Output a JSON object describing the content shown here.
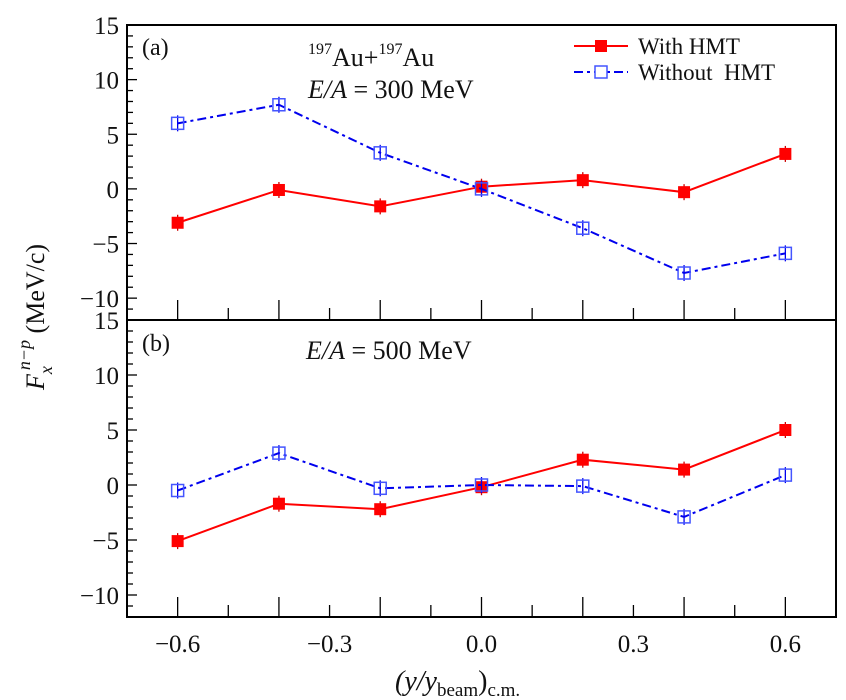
{
  "chart_data": [
    {
      "type": "line",
      "panel_label": "(a)",
      "annotation_line1": {
        "sup1": "197",
        "t1": "Au+",
        "sup2": "197",
        "t2": "Au"
      },
      "annotation_line2": {
        "italic": "E/A",
        "rest": " = 300 MeV"
      },
      "x": [
        -0.6,
        -0.4,
        -0.2,
        0.0,
        0.2,
        0.4,
        0.6
      ],
      "xlim": [
        -0.7,
        0.7
      ],
      "ylim": [
        -12,
        15
      ],
      "yticks": [
        -10,
        -5,
        0,
        5,
        10,
        15
      ],
      "series": [
        {
          "name": "With HMT",
          "color": "#ff0000",
          "marker": "filled-square",
          "linestyle": "solid",
          "values": [
            -3.1,
            -0.1,
            -1.6,
            0.2,
            0.8,
            -0.3,
            3.2
          ]
        },
        {
          "name": "Without  HMT",
          "color": "#0000ee",
          "marker": "open-square",
          "linestyle": "dash-dot",
          "values": [
            6.0,
            7.7,
            3.3,
            0.0,
            -3.6,
            -7.7,
            -5.9
          ]
        }
      ],
      "legend": "top-right"
    },
    {
      "type": "line",
      "panel_label": "(b)",
      "annotation_line2": {
        "italic": "E/A",
        "rest": " = 500 MeV"
      },
      "x": [
        -0.6,
        -0.4,
        -0.2,
        0.0,
        0.2,
        0.4,
        0.6
      ],
      "xlim": [
        -0.7,
        0.7
      ],
      "ylim": [
        -12,
        15
      ],
      "yticks": [
        -10,
        -5,
        0,
        5,
        10,
        15
      ],
      "xticks": [
        "−0.6",
        "−0.3",
        "0.0",
        "0.3",
        "0.6"
      ],
      "xtick_values": [
        -0.6,
        -0.3,
        0.0,
        0.3,
        0.6
      ],
      "series": [
        {
          "name": "With HMT",
          "color": "#ff0000",
          "values": [
            -5.1,
            -1.7,
            -2.2,
            -0.2,
            2.3,
            1.4,
            5.0
          ]
        },
        {
          "name": "Without  HMT",
          "color": "#0000ee",
          "values": [
            -0.5,
            2.9,
            -0.3,
            0.0,
            -0.1,
            -2.9,
            0.9
          ]
        }
      ]
    }
  ],
  "axes": {
    "ylabel": {
      "main": "F",
      "sub": "x",
      "sup": "n−p",
      "unit": " (MeV/c)"
    },
    "xlabel": {
      "open": "(y/y",
      "sub": "beam",
      "close": ")",
      "sub2": "c.m."
    }
  }
}
